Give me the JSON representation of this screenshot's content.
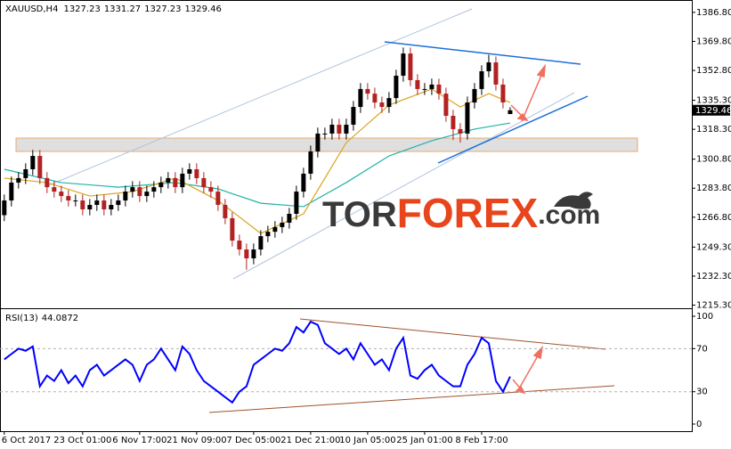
{
  "chart_data": [
    {
      "type": "candlestick",
      "symbol": "XAUUSD,H4",
      "xlim": [
        -0.6,
        96.5
      ],
      "ylim": [
        1214,
        1393
      ],
      "yticks": [
        {
          "value": 1386.8,
          "label": "1386.80"
        },
        {
          "value": 1369.8,
          "label": "1369.80"
        },
        {
          "value": 1352.8,
          "label": "1352.80"
        },
        {
          "value": 1335.3,
          "label": "1335.30"
        },
        {
          "value": 1318.3,
          "label": "1318.30"
        },
        {
          "value": 1300.8,
          "label": "1300.80"
        },
        {
          "value": 1283.8,
          "label": "1283.80"
        },
        {
          "value": 1266.8,
          "label": "1266.80"
        },
        {
          "value": 1249.3,
          "label": "1249.30"
        },
        {
          "value": 1232.3,
          "label": "1232.30"
        },
        {
          "value": 1215.3,
          "label": "1215.30"
        }
      ],
      "up_color": "#000000",
      "down_color": "#b22222",
      "open": [
        1268.0,
        1276.6,
        1287.1,
        1289.7,
        1294.9,
        1302.7,
        1289.7,
        1284.4,
        1281.8,
        1279.2,
        1276.6,
        1276.6,
        1271.4,
        1274.0,
        1276.6,
        1271.4,
        1274.0,
        1276.6,
        1281.8,
        1284.4,
        1279.2,
        1281.8,
        1284.4,
        1287.1,
        1289.7,
        1284.4,
        1292.3,
        1294.9,
        1289.7,
        1284.4,
        1281.8,
        1274.0,
        1266.2,
        1253.1,
        1247.9,
        1242.7,
        1247.9,
        1255.7,
        1258.3,
        1261.0,
        1263.6,
        1268.8,
        1281.8,
        1292.3,
        1305.3,
        1315.8,
        1315.8,
        1321.0,
        1315.8,
        1321.0,
        1331.4,
        1341.9,
        1339.2,
        1334.0,
        1331.4,
        1336.6,
        1349.7,
        1362.7,
        1347.1,
        1341.9,
        1341.9,
        1344.5,
        1339.2,
        1326.2,
        1318.4,
        1315.8,
        1334.0,
        1341.9,
        1352.3,
        1357.5,
        1344.5,
        1327.23
      ],
      "high": [
        1280.1,
        1290.6,
        1293.2,
        1298.4,
        1306.2,
        1306.2,
        1293.2,
        1287.9,
        1285.3,
        1282.7,
        1280.1,
        1280.1,
        1277.5,
        1280.1,
        1280.1,
        1277.5,
        1280.1,
        1285.3,
        1287.9,
        1287.9,
        1285.3,
        1287.9,
        1290.6,
        1293.2,
        1293.2,
        1295.8,
        1298.4,
        1298.4,
        1293.2,
        1287.9,
        1285.3,
        1277.5,
        1269.7,
        1256.6,
        1251.4,
        1251.4,
        1259.2,
        1261.8,
        1264.5,
        1267.1,
        1272.3,
        1285.3,
        1295.8,
        1308.8,
        1319.3,
        1319.3,
        1324.5,
        1324.5,
        1324.5,
        1334.9,
        1345.4,
        1345.4,
        1342.7,
        1337.5,
        1340.1,
        1353.2,
        1366.2,
        1366.2,
        1350.6,
        1345.4,
        1348.0,
        1348.0,
        1342.7,
        1329.7,
        1321.9,
        1337.5,
        1345.4,
        1355.8,
        1362.0,
        1361.0,
        1348.0,
        1331.27
      ],
      "low": [
        1264.5,
        1273.1,
        1283.6,
        1286.2,
        1291.4,
        1286.2,
        1280.9,
        1278.3,
        1275.7,
        1273.1,
        1273.1,
        1267.9,
        1267.9,
        1270.5,
        1267.9,
        1267.9,
        1270.5,
        1273.1,
        1278.3,
        1275.7,
        1275.7,
        1278.3,
        1280.9,
        1283.6,
        1280.9,
        1280.9,
        1288.8,
        1286.2,
        1280.9,
        1278.3,
        1270.5,
        1262.7,
        1249.6,
        1244.4,
        1236.0,
        1239.2,
        1244.4,
        1252.2,
        1254.8,
        1257.5,
        1260.1,
        1265.3,
        1278.3,
        1288.8,
        1301.8,
        1312.3,
        1312.3,
        1312.3,
        1312.3,
        1317.5,
        1327.9,
        1335.7,
        1330.5,
        1327.9,
        1327.9,
        1333.1,
        1346.2,
        1343.6,
        1338.4,
        1338.4,
        1338.4,
        1335.7,
        1322.7,
        1312.0,
        1310.5,
        1312.3,
        1330.5,
        1338.4,
        1348.8,
        1341.0,
        1330.5,
        1327.23
      ],
      "close": [
        1276.6,
        1287.1,
        1289.7,
        1294.9,
        1302.7,
        1289.7,
        1284.4,
        1281.8,
        1279.2,
        1276.6,
        1276.6,
        1271.4,
        1274.0,
        1276.6,
        1271.4,
        1274.0,
        1276.6,
        1281.8,
        1284.4,
        1279.2,
        1281.8,
        1284.4,
        1287.1,
        1289.7,
        1284.4,
        1292.3,
        1294.9,
        1289.7,
        1284.4,
        1281.8,
        1274.0,
        1266.2,
        1253.1,
        1247.9,
        1242.7,
        1247.9,
        1255.7,
        1258.3,
        1261.0,
        1263.6,
        1268.8,
        1281.8,
        1292.3,
        1305.3,
        1315.8,
        1315.8,
        1321.0,
        1315.8,
        1321.0,
        1331.4,
        1341.9,
        1339.2,
        1334.0,
        1331.4,
        1336.6,
        1349.7,
        1362.7,
        1347.1,
        1341.9,
        1341.9,
        1344.5,
        1339.2,
        1326.2,
        1318.4,
        1315.8,
        1334.0,
        1341.9,
        1352.3,
        1357.5,
        1344.5,
        1334.0,
        1329.46
      ],
      "series": [
        {
          "color": "#20b2aa",
          "x": [
            0,
            8,
            16,
            24,
            30,
            36,
            42,
            48,
            54,
            60,
            66,
            71
          ],
          "values": [
            1294.9,
            1287.1,
            1284.4,
            1287.1,
            1283.4,
            1275.0,
            1273.0,
            1287.1,
            1302.7,
            1311.6,
            1318.4,
            1322.0
          ]
        },
        {
          "color": "#daa520",
          "x": [
            0,
            6,
            12,
            18,
            24,
            30,
            36,
            42,
            48,
            54,
            60,
            64,
            68,
            71
          ],
          "values": [
            1289.7,
            1287.1,
            1279.2,
            1281.8,
            1289.7,
            1276.6,
            1257.3,
            1268.8,
            1310.5,
            1332.5,
            1341.9,
            1331.4,
            1339.2,
            1334.0
          ]
        }
      ]
    },
    {
      "type": "line",
      "title": "RSI(13)",
      "color": "#0000ff",
      "xlim": [
        -0.6,
        96.5
      ],
      "ylim": [
        -6.6,
        105.8
      ],
      "yticks": [
        100,
        70,
        30,
        0
      ],
      "xticks": [
        {
          "value": 0,
          "label": "6 Oct 2017"
        },
        {
          "value": 11,
          "label": "23 Oct 01:00"
        },
        {
          "value": 19,
          "label": "6 Nov 17:00"
        },
        {
          "value": 27,
          "label": "21 Nov 09:00"
        },
        {
          "value": 35,
          "label": "7 Dec 05:00"
        },
        {
          "value": 43,
          "label": "21 Dec 21:00"
        },
        {
          "value": 51,
          "label": "10 Jan 05:00"
        },
        {
          "value": 59,
          "label": "25 Jan 01:00"
        },
        {
          "value": 67,
          "label": "8 Feb 17:00"
        }
      ],
      "values": [
        60,
        65,
        70,
        68,
        72,
        35,
        45,
        40,
        50,
        38,
        45,
        35,
        50,
        55,
        45,
        50,
        55,
        60,
        55,
        40,
        55,
        60,
        70,
        60,
        50,
        72,
        65,
        50,
        40,
        35,
        30,
        25,
        20,
        30,
        35,
        55,
        60,
        65,
        70,
        68,
        75,
        90,
        85,
        95,
        92,
        75,
        70,
        65,
        70,
        60,
        75,
        65,
        55,
        60,
        50,
        70,
        80,
        45,
        42,
        50,
        55,
        45,
        40,
        35,
        35,
        55,
        65,
        80,
        75,
        40,
        30,
        44.0872
      ]
    }
  ],
  "watermark": {
    "part1": "TOR",
    "part2": "FOREX",
    "part3": ".com"
  }
}
